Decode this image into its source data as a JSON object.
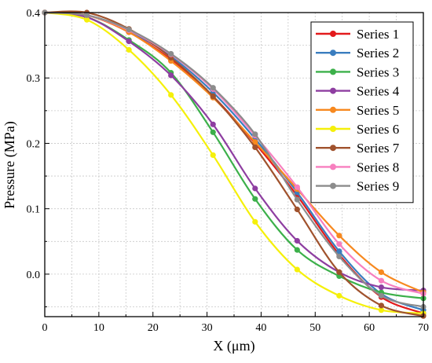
{
  "chart_data": {
    "type": "line",
    "xlabel": "X (μm)",
    "ylabel": "Pressure (MPa)",
    "xlim": [
      0,
      70
    ],
    "ylim": [
      -0.065,
      0.4
    ],
    "x_ticks": [
      "0",
      "10",
      "20",
      "30",
      "40",
      "50",
      "60",
      "70"
    ],
    "y_ticks": [
      "0.0",
      "0.1",
      "0.2",
      "0.3",
      "0.4"
    ],
    "grid": true,
    "legend_position": "top-right",
    "x": [
      0,
      7.78,
      15.56,
      23.33,
      31.11,
      38.89,
      46.67,
      54.44,
      62.22,
      70
    ],
    "series": [
      {
        "name": "Series 1",
        "color": "#e31a1c",
        "values": [
          0.4,
          0.396,
          0.37,
          0.328,
          0.272,
          0.2,
          0.12,
          0.03,
          -0.035,
          -0.06
        ]
      },
      {
        "name": "Series 2",
        "color": "#3a7dbf",
        "values": [
          0.4,
          0.396,
          0.372,
          0.333,
          0.278,
          0.207,
          0.125,
          0.035,
          -0.03,
          -0.055
        ]
      },
      {
        "name": "Series 3",
        "color": "#3cb04a",
        "values": [
          0.4,
          0.393,
          0.358,
          0.308,
          0.217,
          0.115,
          0.037,
          -0.003,
          -0.028,
          -0.037
        ]
      },
      {
        "name": "Series 4",
        "color": "#8e3ea1",
        "values": [
          0.4,
          0.393,
          0.356,
          0.304,
          0.229,
          0.131,
          0.051,
          0.003,
          -0.02,
          -0.025
        ]
      },
      {
        "name": "Series 5",
        "color": "#f7891f",
        "values": [
          0.4,
          0.396,
          0.37,
          0.326,
          0.27,
          0.202,
          0.13,
          0.059,
          0.003,
          -0.028
        ]
      },
      {
        "name": "Series 6",
        "color": "#f5f00a",
        "values": [
          0.4,
          0.389,
          0.343,
          0.274,
          0.182,
          0.08,
          0.007,
          -0.033,
          -0.055,
          -0.06
        ]
      },
      {
        "name": "Series 7",
        "color": "#a0522d",
        "values": [
          0.4,
          0.4,
          0.375,
          0.331,
          0.272,
          0.194,
          0.099,
          0.003,
          -0.048,
          -0.064
        ]
      },
      {
        "name": "Series 8",
        "color": "#f77fbf",
        "values": [
          0.4,
          0.396,
          0.373,
          0.336,
          0.283,
          0.212,
          0.133,
          0.046,
          -0.01,
          -0.03
        ]
      },
      {
        "name": "Series 9",
        "color": "#8c8c8c",
        "values": [
          0.4,
          0.396,
          0.374,
          0.337,
          0.285,
          0.214,
          0.114,
          0.027,
          -0.033,
          -0.05
        ]
      }
    ]
  }
}
